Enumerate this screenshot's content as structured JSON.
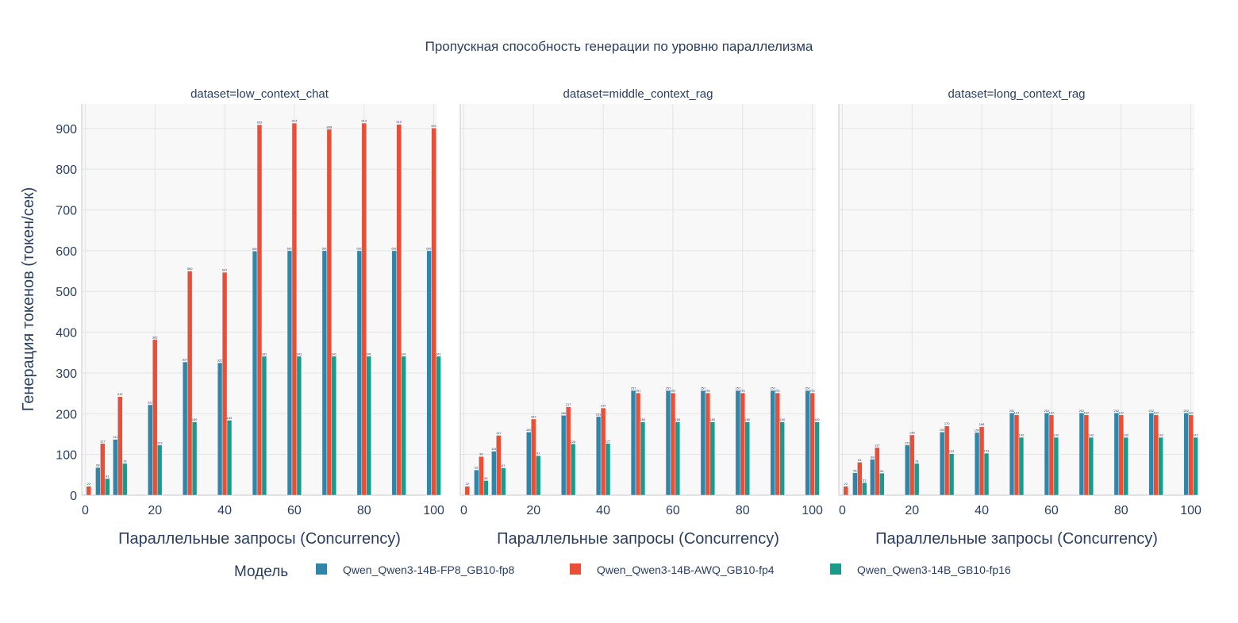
{
  "chart_data": {
    "type": "bar",
    "title": "Пропускная способность генерации по уровню параллелизма",
    "ylabel": "Генерация токенов (токен/сек)",
    "xlabel": "Параллельные запросы (Concurrency)",
    "ylim": [
      0,
      960
    ],
    "xlim": [
      -1,
      101
    ],
    "yticks": [
      0,
      100,
      200,
      300,
      400,
      500,
      600,
      700,
      800,
      900
    ],
    "xticks": [
      0,
      20,
      40,
      60,
      80,
      100
    ],
    "grid": true,
    "legend": {
      "title": "Модель",
      "position": "bottom"
    },
    "x": [
      1,
      5,
      10,
      20,
      30,
      40,
      50,
      60,
      70,
      80,
      90,
      100
    ],
    "series": [
      {
        "name": "Qwen_Qwen3-14B-FP8_GB10-fp8",
        "color": "#2e86ab"
      },
      {
        "name": "Qwen_Qwen3-14B-AWQ_GB10-fp4",
        "color": "#e94f37"
      },
      {
        "name": "Qwen_Qwen3-14B_GB10-fp16",
        "color": "#1b998b"
      }
    ],
    "facets": [
      {
        "title": "dataset=low_context_chat",
        "values": [
          [
            null,
            68,
            137,
            222,
            327,
            325,
            599,
            600,
            600,
            600,
            600,
            600
          ],
          [
            22,
            127,
            242,
            382,
            550,
            547,
            909,
            913,
            898,
            913,
            910,
            901
          ],
          [
            null,
            41,
            78,
            123,
            180,
            184,
            341,
            341,
            341,
            341,
            341,
            341
          ]
        ]
      },
      {
        "title": "dataset=middle_context_rag",
        "values": [
          [
            null,
            62,
            108,
            155,
            196,
            193,
            257,
            257,
            257,
            257,
            257,
            257
          ],
          [
            22,
            95,
            147,
            187,
            217,
            214,
            251,
            251,
            251,
            251,
            251,
            251
          ],
          [
            null,
            36,
            67,
            97,
            126,
            127,
            180,
            180,
            180,
            180,
            180,
            180
          ]
        ]
      },
      {
        "title": "dataset=long_context_rag",
        "values": [
          [
            null,
            55,
            88,
            123,
            155,
            154,
            202,
            202,
            202,
            202,
            202,
            202
          ],
          [
            22,
            81,
            117,
            148,
            170,
            168,
            197,
            197,
            197,
            197,
            197,
            197
          ],
          [
            null,
            31,
            54,
            78,
            102,
            103,
            142,
            142,
            142,
            142,
            142,
            142
          ]
        ]
      }
    ]
  }
}
